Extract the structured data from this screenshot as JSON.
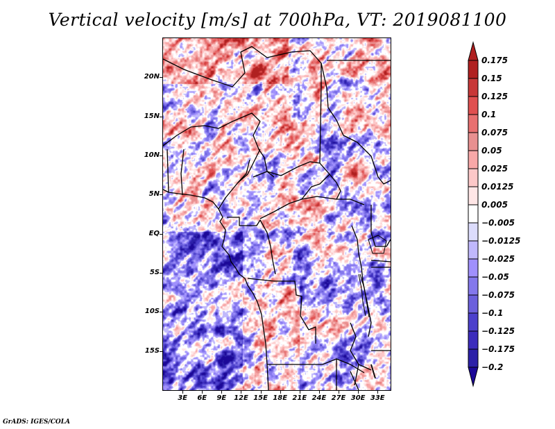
{
  "title": "Vertical velocity [m/s] at 700hPa, VT: 2019081100",
  "footer": "GrADS: IGES/COLA",
  "map": {
    "variable": "Vertical velocity",
    "units": "m/s",
    "level": "700hPa",
    "valid_time": "2019081100",
    "lon_range": [
      0,
      35
    ],
    "lat_range": [
      -20,
      25
    ],
    "y_ticks": [
      {
        "lat": 20,
        "label": "20N"
      },
      {
        "lat": 15,
        "label": "15N"
      },
      {
        "lat": 10,
        "label": "10N"
      },
      {
        "lat": 5,
        "label": "5N"
      },
      {
        "lat": 0,
        "label": "EQ"
      },
      {
        "lat": -5,
        "label": "5S"
      },
      {
        "lat": -10,
        "label": "10S"
      },
      {
        "lat": -15,
        "label": "15S"
      }
    ],
    "x_ticks": [
      {
        "lon": 3,
        "label": "3E"
      },
      {
        "lon": 6,
        "label": "6E"
      },
      {
        "lon": 9,
        "label": "9E"
      },
      {
        "lon": 12,
        "label": "12E"
      },
      {
        "lon": 15,
        "label": "15E"
      },
      {
        "lon": 18,
        "label": "18E"
      },
      {
        "lon": 21,
        "label": "21E"
      },
      {
        "lon": 24,
        "label": "24E"
      },
      {
        "lon": 27,
        "label": "27E"
      },
      {
        "lon": 30,
        "label": "30E"
      },
      {
        "lon": 33,
        "label": "33E"
      }
    ]
  },
  "colorbar": {
    "levels": [
      "0.175",
      "0.15",
      "0.125",
      "0.1",
      "0.075",
      "0.05",
      "0.025",
      "0.0125",
      "0.005",
      "-0.005",
      "-0.0125",
      "-0.025",
      "-0.05",
      "-0.075",
      "-0.1",
      "-0.125",
      "-0.175",
      "-0.2"
    ],
    "colors": [
      "#b02020",
      "#c83838",
      "#e05050",
      "#e87070",
      "#e89090",
      "#f8a8a8",
      "#fcc8c8",
      "#ffe6e6",
      "#ffffff",
      "#dcdcfc",
      "#c0b8fc",
      "#a090fc",
      "#8478ec",
      "#6c60dc",
      "#4c40cc",
      "#3c2cbc",
      "#2c20a8",
      "#1c0898"
    ],
    "over_color": "#b02020",
    "under_color": "#1c0898"
  }
}
